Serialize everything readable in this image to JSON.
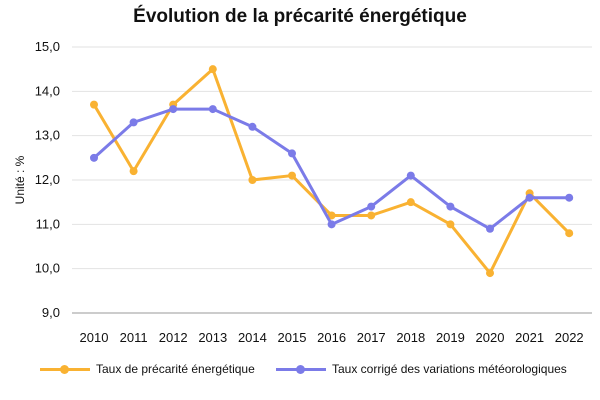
{
  "chart_data": {
    "type": "line",
    "title": "Évolution de la précarité énergétique",
    "xlabel": "",
    "ylabel": "Unité : %",
    "ylim": [
      9,
      15
    ],
    "yticks": [
      "9,0",
      "10,0",
      "11,0",
      "12,0",
      "13,0",
      "14,0",
      "15,0"
    ],
    "categories": [
      "2010",
      "2011",
      "2012",
      "2013",
      "2014",
      "2015",
      "2016",
      "2017",
      "2018",
      "2019",
      "2020",
      "2021",
      "2022"
    ],
    "series": [
      {
        "name": "Taux de précarité énergétique",
        "color": "#f9b232",
        "values": [
          13.7,
          12.2,
          13.7,
          14.5,
          12.0,
          12.1,
          11.2,
          11.2,
          11.5,
          11.0,
          9.9,
          11.7,
          10.8
        ]
      },
      {
        "name": "Taux corrigé des variations météorologiques",
        "color": "#7b7be8",
        "values": [
          12.5,
          13.3,
          13.6,
          13.6,
          13.2,
          12.6,
          11.0,
          11.4,
          12.1,
          11.4,
          10.9,
          11.6,
          11.6
        ]
      }
    ],
    "grid": true,
    "legend_position": "bottom"
  }
}
